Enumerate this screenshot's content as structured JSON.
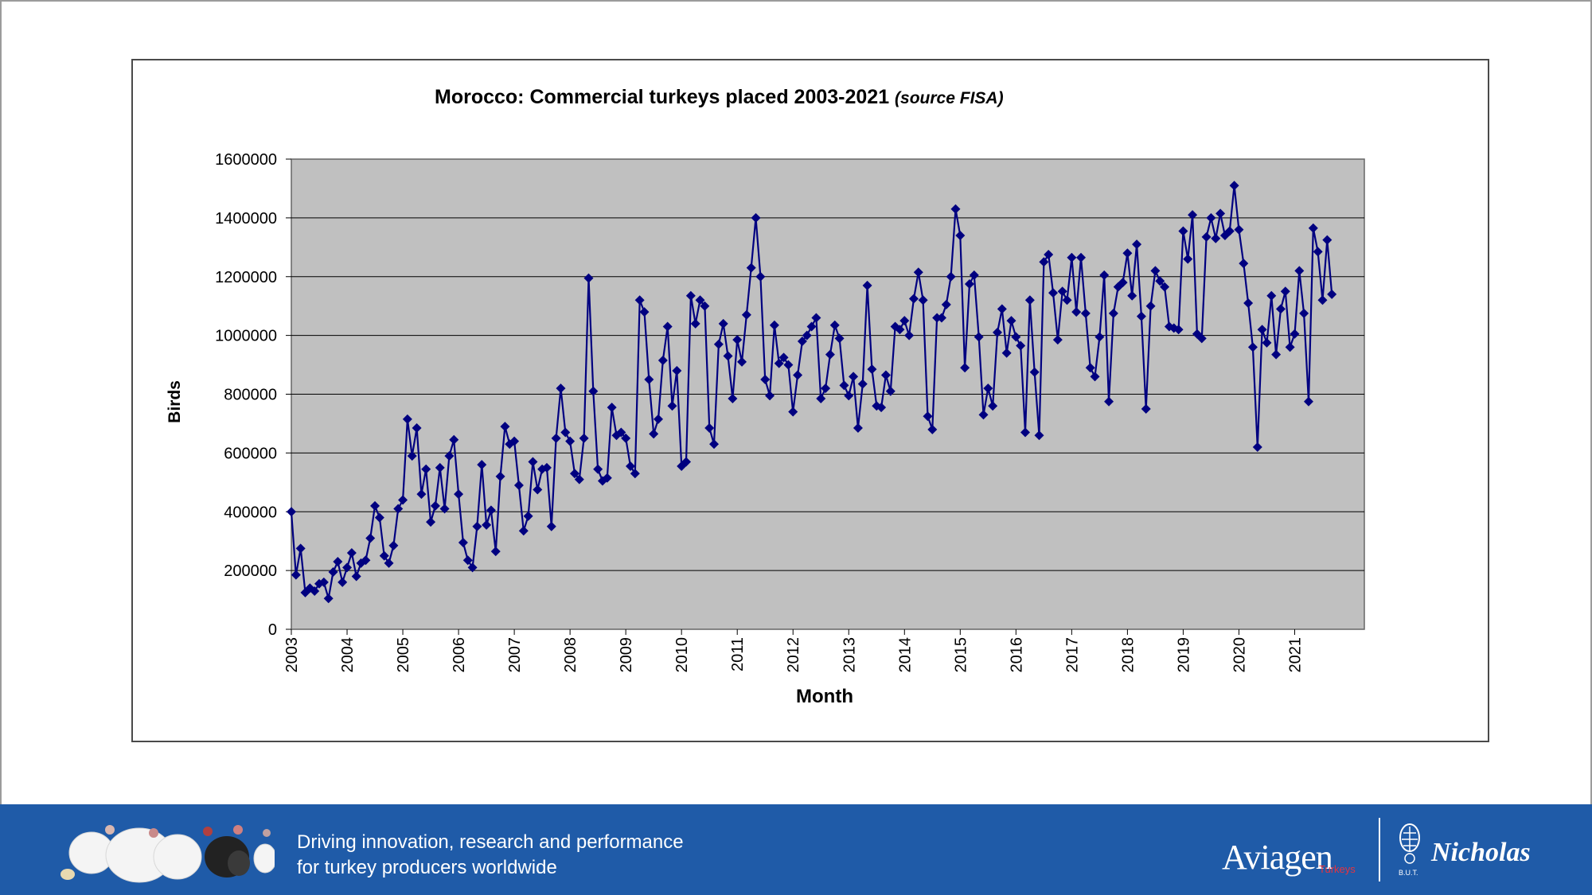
{
  "chart_data": {
    "type": "line",
    "title": "Morocco: Commercial turkeys placed 2003-2021",
    "title_source": "(source FISA)",
    "xlabel": "Month",
    "ylabel": "Birds",
    "ylim": [
      0,
      1600000
    ],
    "yticks": [
      0,
      200000,
      400000,
      600000,
      800000,
      1000000,
      1200000,
      1400000,
      1600000
    ],
    "xticks": [
      "2003",
      "2004",
      "2005",
      "2006",
      "2007",
      "2008",
      "2009",
      "2010",
      "2011",
      "2012",
      "2013",
      "2014",
      "2015",
      "2016",
      "2017",
      "2018",
      "2019",
      "2020",
      "2021"
    ],
    "x_start": "2003-01",
    "grid": "horizontal",
    "plot_background": "#c0c0c0",
    "series": [
      {
        "color": "#000080",
        "marker": "diamond",
        "values": [
          400000,
          185000,
          275000,
          125000,
          140000,
          130000,
          155000,
          160000,
          105000,
          195000,
          230000,
          160000,
          210000,
          260000,
          180000,
          225000,
          235000,
          310000,
          420000,
          380000,
          250000,
          225000,
          285000,
          410000,
          440000,
          715000,
          590000,
          685000,
          460000,
          545000,
          365000,
          420000,
          550000,
          410000,
          590000,
          645000,
          460000,
          295000,
          235000,
          210000,
          350000,
          560000,
          355000,
          405000,
          265000,
          520000,
          690000,
          630000,
          640000,
          490000,
          335000,
          385000,
          570000,
          475000,
          545000,
          550000,
          350000,
          650000,
          820000,
          670000,
          640000,
          530000,
          510000,
          650000,
          1195000,
          810000,
          545000,
          505000,
          515000,
          755000,
          660000,
          670000,
          650000,
          555000,
          530000,
          1120000,
          1080000,
          850000,
          665000,
          715000,
          915000,
          1030000,
          760000,
          880000,
          555000,
          570000,
          1135000,
          1040000,
          1120000,
          1100000,
          685000,
          630000,
          970000,
          1040000,
          930000,
          785000,
          985000,
          910000,
          1070000,
          1230000,
          1400000,
          1200000,
          850000,
          795000,
          1035000,
          905000,
          925000,
          900000,
          740000,
          865000,
          980000,
          1000000,
          1030000,
          1060000,
          785000,
          820000,
          935000,
          1035000,
          990000,
          830000,
          795000,
          860000,
          685000,
          835000,
          1170000,
          885000,
          760000,
          755000,
          865000,
          810000,
          1030000,
          1020000,
          1050000,
          1000000,
          1125000,
          1215000,
          1120000,
          725000,
          680000,
          1060000,
          1060000,
          1105000,
          1200000,
          1430000,
          1340000,
          890000,
          1175000,
          1205000,
          995000,
          730000,
          820000,
          760000,
          1010000,
          1090000,
          940000,
          1050000,
          995000,
          965000,
          670000,
          1120000,
          875000,
          660000,
          1250000,
          1275000,
          1145000,
          985000,
          1150000,
          1120000,
          1265000,
          1080000,
          1265000,
          1075000,
          890000,
          860000,
          995000,
          1205000,
          775000,
          1075000,
          1165000,
          1180000,
          1280000,
          1135000,
          1310000,
          1065000,
          750000,
          1100000,
          1220000,
          1185000,
          1165000,
          1030000,
          1025000,
          1020000,
          1355000,
          1260000,
          1410000,
          1005000,
          990000,
          1335000,
          1400000,
          1330000,
          1415000,
          1340000,
          1355000,
          1510000,
          1360000,
          1245000,
          1110000,
          960000,
          620000,
          1020000,
          975000,
          1135000,
          935000,
          1090000,
          1150000,
          960000,
          1005000,
          1220000,
          1075000,
          775000,
          1365000,
          1285000,
          1120000,
          1325000,
          1140000
        ]
      }
    ]
  },
  "footer": {
    "tagline_line1": "Driving innovation, research and performance",
    "tagline_line2": "for turkey producers worldwide",
    "logo_aviagen": "Aviagen",
    "logo_aviagen_sub": "Turkeys",
    "logo_but": "B.U.T.",
    "logo_nicholas": "Nicholas",
    "background": "#1f5ba8"
  }
}
